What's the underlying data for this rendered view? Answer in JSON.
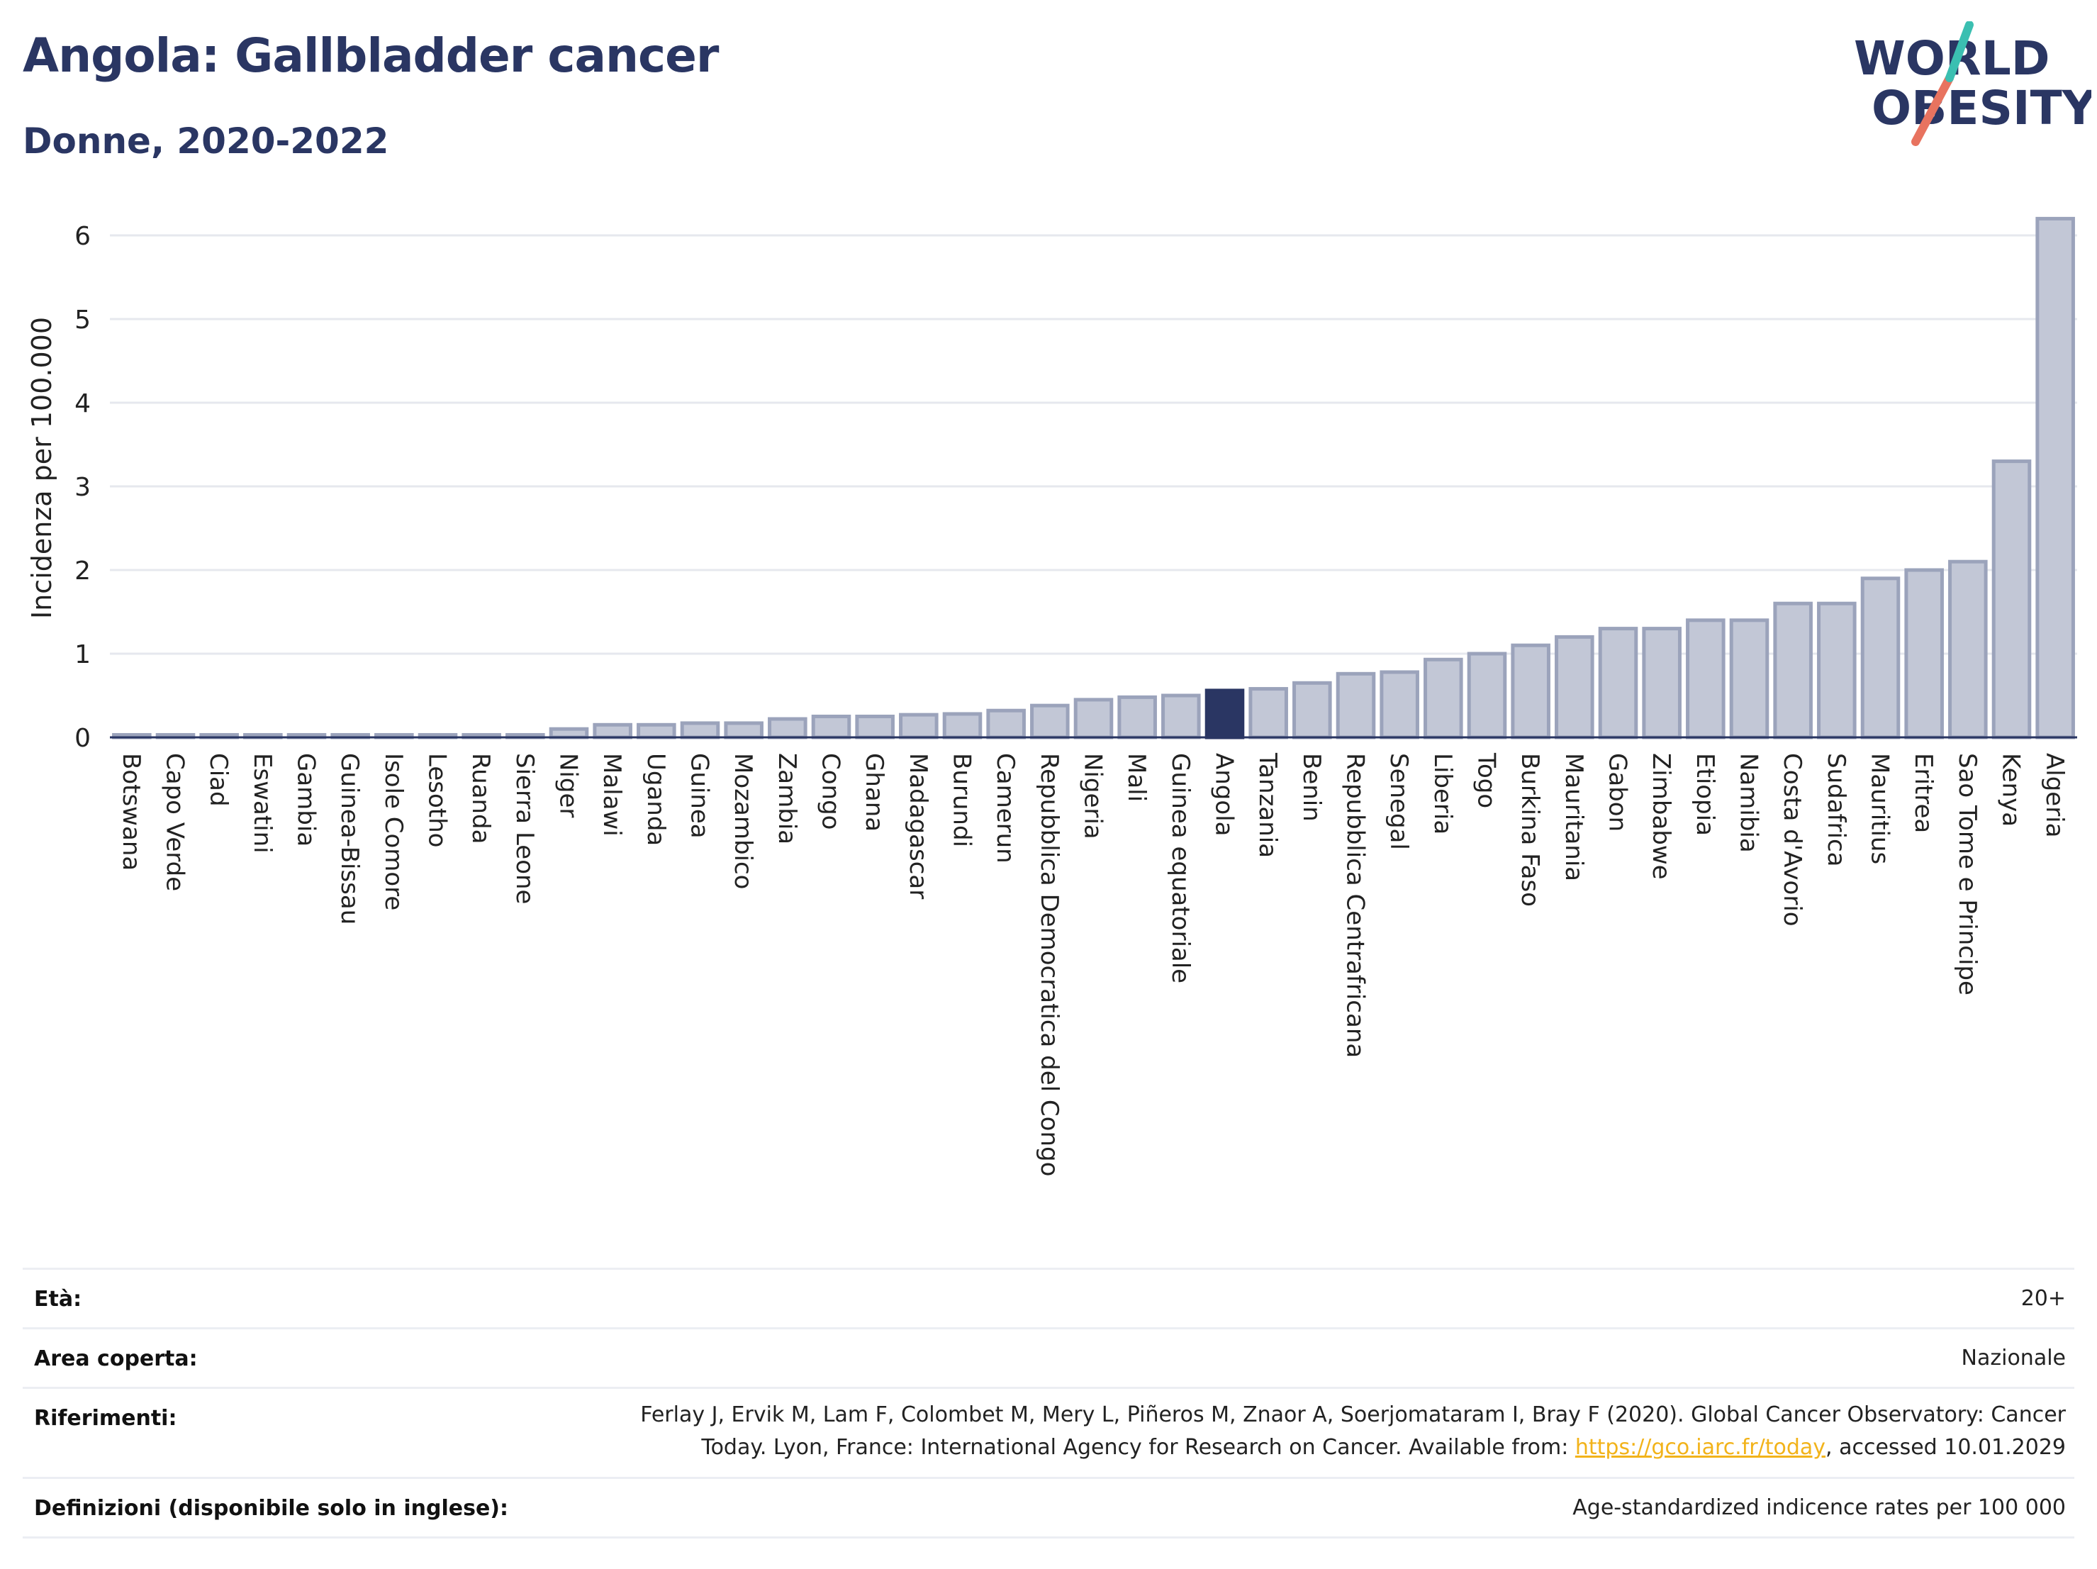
{
  "header": {
    "title": "Angola: Gallbladder cancer",
    "subtitle": "Donne, 2020-2022",
    "logo_line1": "WORLD",
    "logo_line2": "OBESITY"
  },
  "colors": {
    "title": "#2a3663",
    "bar": "#c2c7d6",
    "bar_border": "#9ba3bb",
    "highlight": "#2a3663",
    "logo_teal": "#3bbfb1",
    "logo_coral": "#e8735f",
    "link": "#f2b31a"
  },
  "chart_data": {
    "type": "bar",
    "ylabel": "Incidenza per 100.000",
    "ylim": [
      0,
      6.5
    ],
    "yticks": [
      0,
      1,
      2,
      3,
      4,
      5,
      6
    ],
    "grid": true,
    "highlight": "Angola",
    "categories": [
      "Botswana",
      "Capo Verde",
      "Ciad",
      "Eswatini",
      "Gambia",
      "Guinea-Bissau",
      "Isole Comore",
      "Lesotho",
      "Ruanda",
      "Sierra Leone",
      "Niger",
      "Malawi",
      "Uganda",
      "Guinea",
      "Mozambico",
      "Zambia",
      "Congo",
      "Ghana",
      "Madagascar",
      "Burundi",
      "Camerun",
      "Repubblica Democratica del Congo",
      "Nigeria",
      "Mali",
      "Guinea equatoriale",
      "Angola",
      "Tanzania",
      "Benin",
      "Repubblica Centrafricana",
      "Senegal",
      "Liberia",
      "Togo",
      "Burkina Faso",
      "Mauritania",
      "Gabon",
      "Zimbabwe",
      "Etiopia",
      "Namibia",
      "Costa d'Avorio",
      "Sudafrica",
      "Mauritius",
      "Eritrea",
      "Sao Tome e Principe",
      "Kenya",
      "Algeria"
    ],
    "values": [
      0.03,
      0.03,
      0.03,
      0.03,
      0.03,
      0.03,
      0.03,
      0.03,
      0.03,
      0.03,
      0.1,
      0.15,
      0.15,
      0.17,
      0.17,
      0.22,
      0.25,
      0.25,
      0.27,
      0.28,
      0.32,
      0.38,
      0.45,
      0.48,
      0.5,
      0.56,
      0.58,
      0.65,
      0.76,
      0.78,
      0.93,
      1.0,
      1.1,
      1.2,
      1.3,
      1.3,
      1.4,
      1.4,
      1.6,
      1.6,
      1.9,
      2.0,
      2.1,
      3.3,
      6.2
    ]
  },
  "info": {
    "age_label": "Età:",
    "age_value": "20+",
    "area_label": "Area coperta:",
    "area_value": "Nazionale",
    "ref_label": "Riferimenti:",
    "ref_line1": "Ferlay J, Ervik M, Lam F, Colombet M, Mery L, Piñeros M, Znaor A, Soerjomataram I, Bray F (2020). Global Cancer Observatory: Cancer",
    "ref_line2_pre": "Today. Lyon, France: International Agency for Research on Cancer. Available from: ",
    "ref_link": "https://gco.iarc.fr/today",
    "ref_line2_post": ", accessed 10.01.2029",
    "def_label": "Definizioni (disponibile solo in inglese):",
    "def_value": "Age-standardized indicence rates per 100 000"
  }
}
